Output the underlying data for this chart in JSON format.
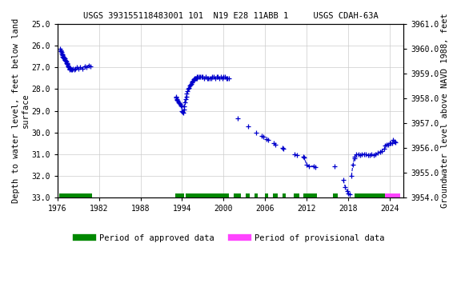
{
  "title": "USGS 393155118483001 101  N19 E28 11ABB 1     USGS CDAH-63A",
  "ylabel_left": "Depth to water level, feet below land\nsurface",
  "ylabel_right": "Groundwater level above NAVD 1988, feet",
  "ylim_left": [
    33.0,
    25.0
  ],
  "ylim_right": [
    3954.0,
    3961.0
  ],
  "xlim": [
    1976,
    2026
  ],
  "xticks": [
    1976,
    1982,
    1988,
    1994,
    2000,
    2006,
    2012,
    2018,
    2024
  ],
  "yticks_left": [
    25.0,
    26.0,
    27.0,
    28.0,
    29.0,
    30.0,
    31.0,
    32.0,
    33.0
  ],
  "yticks_right": [
    3954.0,
    3955.0,
    3956.0,
    3957.0,
    3958.0,
    3959.0,
    3960.0,
    3961.0
  ],
  "data_color": "#0000cc",
  "approved_color": "#008800",
  "provisional_color": "#ff44ff",
  "background_color": "#ffffff",
  "grid_color": "#cccccc",
  "approved_periods": [
    [
      1976.3,
      1981.0
    ],
    [
      1993.0,
      1994.3
    ],
    [
      1994.5,
      2000.8
    ],
    [
      2001.5,
      2002.5
    ],
    [
      2003.2,
      2003.8
    ],
    [
      2004.5,
      2005.0
    ],
    [
      2006.0,
      2006.5
    ],
    [
      2007.2,
      2007.8
    ],
    [
      2008.5,
      2009.0
    ],
    [
      2010.2,
      2011.0
    ],
    [
      2011.5,
      2013.5
    ],
    [
      2015.8,
      2016.5
    ],
    [
      2019.0,
      2023.3
    ]
  ],
  "provisional_periods": [
    [
      2023.3,
      2025.5
    ]
  ],
  "data_segments": [
    [
      [
        1976.4,
        26.15
      ],
      [
        1976.45,
        26.2
      ],
      [
        1976.5,
        26.25
      ],
      [
        1976.55,
        26.3
      ],
      [
        1976.6,
        26.35
      ],
      [
        1976.65,
        26.4
      ],
      [
        1976.7,
        26.45
      ],
      [
        1976.75,
        26.5
      ],
      [
        1976.8,
        26.5
      ],
      [
        1976.85,
        26.55
      ],
      [
        1976.9,
        26.55
      ],
      [
        1976.95,
        26.6
      ],
      [
        1977.0,
        26.6
      ],
      [
        1977.05,
        26.65
      ],
      [
        1977.1,
        26.65
      ],
      [
        1977.15,
        26.7
      ],
      [
        1977.2,
        26.7
      ],
      [
        1977.25,
        26.75
      ],
      [
        1977.3,
        26.8
      ],
      [
        1977.35,
        26.8
      ],
      [
        1977.4,
        26.85
      ],
      [
        1977.45,
        26.85
      ],
      [
        1977.5,
        26.9
      ],
      [
        1977.55,
        26.95
      ],
      [
        1977.6,
        27.0
      ],
      [
        1977.65,
        27.0
      ],
      [
        1977.7,
        27.05
      ],
      [
        1977.75,
        27.05
      ],
      [
        1977.8,
        27.1
      ],
      [
        1977.9,
        27.05
      ],
      [
        1978.0,
        27.1
      ],
      [
        1978.1,
        27.1
      ],
      [
        1978.2,
        27.05
      ],
      [
        1978.4,
        27.1
      ],
      [
        1978.6,
        27.05
      ],
      [
        1978.8,
        27.0
      ],
      [
        1979.0,
        27.05
      ],
      [
        1979.3,
        27.0
      ],
      [
        1979.6,
        27.05
      ],
      [
        1979.9,
        26.95
      ],
      [
        1980.2,
        27.0
      ],
      [
        1980.5,
        26.9
      ],
      [
        1980.8,
        26.95
      ]
    ],
    [
      [
        1993.1,
        28.35
      ],
      [
        1993.15,
        28.4
      ],
      [
        1993.2,
        28.45
      ],
      [
        1993.3,
        28.5
      ],
      [
        1993.4,
        28.55
      ],
      [
        1993.5,
        28.6
      ],
      [
        1993.6,
        28.65
      ],
      [
        1993.7,
        28.7
      ],
      [
        1993.8,
        28.75
      ],
      [
        1993.9,
        28.8
      ],
      [
        1994.0,
        29.0
      ],
      [
        1994.1,
        29.05
      ],
      [
        1994.2,
        29.1
      ],
      [
        1994.25,
        28.95
      ],
      [
        1994.3,
        28.8
      ],
      [
        1994.4,
        28.6
      ],
      [
        1994.5,
        28.45
      ],
      [
        1994.6,
        28.35
      ],
      [
        1994.7,
        28.2
      ],
      [
        1994.8,
        28.1
      ],
      [
        1994.9,
        28.0
      ],
      [
        1995.0,
        27.95
      ],
      [
        1995.1,
        27.85
      ],
      [
        1995.2,
        27.8
      ],
      [
        1995.3,
        27.75
      ],
      [
        1995.4,
        27.7
      ],
      [
        1995.5,
        27.65
      ],
      [
        1995.6,
        27.6
      ],
      [
        1995.7,
        27.55
      ],
      [
        1995.8,
        27.5
      ],
      [
        1995.9,
        27.5
      ],
      [
        1996.0,
        27.5
      ],
      [
        1996.1,
        27.5
      ],
      [
        1996.2,
        27.45
      ],
      [
        1996.3,
        27.45
      ],
      [
        1996.5,
        27.45
      ],
      [
        1996.6,
        27.45
      ],
      [
        1996.8,
        27.45
      ],
      [
        1997.0,
        27.45
      ],
      [
        1997.2,
        27.5
      ],
      [
        1997.4,
        27.45
      ],
      [
        1997.6,
        27.5
      ],
      [
        1997.8,
        27.5
      ],
      [
        1998.0,
        27.5
      ],
      [
        1998.2,
        27.5
      ],
      [
        1998.4,
        27.45
      ],
      [
        1998.6,
        27.45
      ],
      [
        1998.8,
        27.5
      ],
      [
        1999.0,
        27.45
      ],
      [
        1999.2,
        27.45
      ],
      [
        1999.4,
        27.5
      ],
      [
        1999.6,
        27.45
      ],
      [
        1999.8,
        27.5
      ],
      [
        2000.0,
        27.45
      ],
      [
        2000.2,
        27.45
      ],
      [
        2000.4,
        27.5
      ],
      [
        2000.6,
        27.5
      ],
      [
        2000.8,
        27.5
      ]
    ],
    [
      [
        2002.0,
        29.35
      ]
    ],
    [
      [
        2003.5,
        29.7
      ]
    ],
    [
      [
        2004.7,
        30.0
      ]
    ],
    [
      [
        2005.5,
        30.15
      ],
      [
        2005.7,
        30.2
      ]
    ],
    [
      [
        2006.2,
        30.3
      ],
      [
        2006.4,
        30.35
      ]
    ],
    [
      [
        2007.3,
        30.5
      ],
      [
        2007.5,
        30.55
      ]
    ],
    [
      [
        2008.5,
        30.7
      ],
      [
        2008.7,
        30.75
      ]
    ],
    [
      [
        2010.3,
        31.0
      ],
      [
        2010.6,
        31.05
      ]
    ],
    [
      [
        2011.5,
        31.1
      ],
      [
        2011.7,
        31.15
      ],
      [
        2012.0,
        31.5
      ],
      [
        2012.3,
        31.55
      ],
      [
        2013.0,
        31.55
      ],
      [
        2013.3,
        31.6
      ]
    ],
    [
      [
        2016.0,
        31.55
      ]
    ],
    [
      [
        2017.3,
        32.2
      ],
      [
        2017.6,
        32.5
      ],
      [
        2017.9,
        32.7
      ],
      [
        2018.0,
        32.8
      ],
      [
        2018.2,
        32.85
      ]
    ],
    [
      [
        2018.5,
        32.0
      ],
      [
        2018.7,
        31.5
      ],
      [
        2018.9,
        31.2
      ],
      [
        2019.0,
        31.1
      ],
      [
        2019.2,
        31.0
      ],
      [
        2019.5,
        31.0
      ],
      [
        2019.8,
        31.05
      ],
      [
        2020.0,
        31.0
      ],
      [
        2020.3,
        31.0
      ],
      [
        2020.6,
        31.0
      ],
      [
        2020.9,
        31.05
      ],
      [
        2021.1,
        31.05
      ],
      [
        2021.4,
        31.0
      ],
      [
        2021.7,
        31.05
      ],
      [
        2022.0,
        31.0
      ],
      [
        2022.3,
        30.95
      ],
      [
        2022.6,
        30.9
      ],
      [
        2022.9,
        30.85
      ],
      [
        2023.2,
        30.75
      ]
    ],
    [
      [
        2023.4,
        30.6
      ],
      [
        2023.6,
        30.55
      ],
      [
        2023.8,
        30.55
      ],
      [
        2024.0,
        30.5
      ],
      [
        2024.2,
        30.5
      ],
      [
        2024.4,
        30.5
      ],
      [
        2024.5,
        30.35
      ],
      [
        2024.7,
        30.4
      ],
      [
        2024.9,
        30.45
      ]
    ]
  ],
  "legend_approved": "Period of approved data",
  "legend_provisional": "Period of provisional data",
  "title_fontsize": 7.5,
  "axis_fontsize": 7.5,
  "tick_fontsize": 7
}
